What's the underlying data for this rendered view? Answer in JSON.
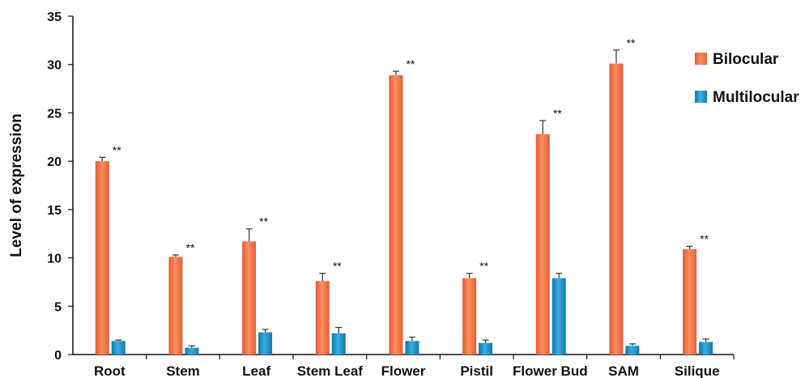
{
  "chart_data": {
    "type": "bar",
    "ylabel": "Level of expression",
    "ylim": [
      0,
      35
    ],
    "yticks": [
      0,
      5,
      10,
      15,
      20,
      25,
      30,
      35
    ],
    "categories": [
      "Root",
      "Stem",
      "Leaf",
      "Stem Leaf",
      "Flower",
      "Pistil",
      "Flower Bud",
      "SAM",
      "Silique"
    ],
    "series": [
      {
        "name": "Bilocular",
        "color": "#F07448",
        "values": [
          20.0,
          10.1,
          11.7,
          7.6,
          28.9,
          7.9,
          22.8,
          30.1,
          10.9
        ],
        "errors": [
          0.4,
          0.2,
          1.3,
          0.8,
          0.4,
          0.5,
          1.4,
          1.4,
          0.3
        ]
      },
      {
        "name": "Multilocular",
        "color": "#1C8FC4",
        "values": [
          1.4,
          0.7,
          2.3,
          2.2,
          1.4,
          1.2,
          7.9,
          0.9,
          1.3
        ],
        "errors": [
          0.1,
          0.2,
          0.3,
          0.6,
          0.4,
          0.3,
          0.5,
          0.2,
          0.3
        ]
      }
    ],
    "significance": [
      "**",
      "**",
      "**",
      "**",
      "**",
      "**",
      "**",
      "**",
      "**"
    ],
    "legend_position": "top-right"
  }
}
